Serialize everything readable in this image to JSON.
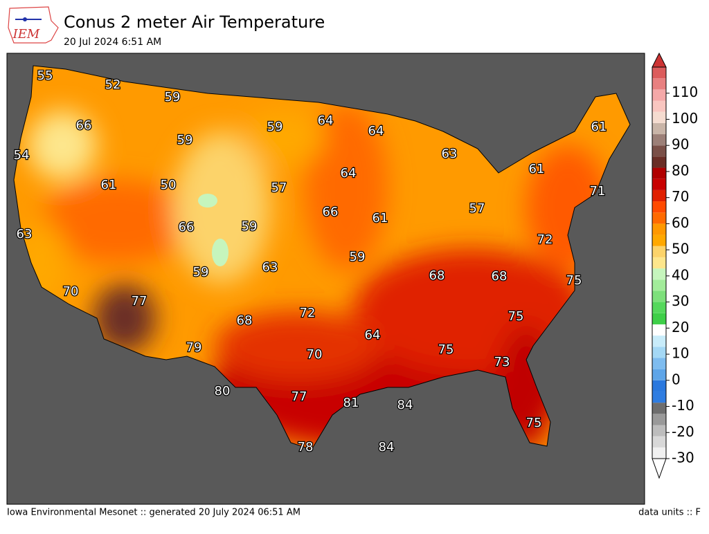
{
  "header": {
    "logo": "IEM",
    "title": "Conus 2 meter Air Temperature",
    "subtitle": "20 Jul 2024 6:51 AM"
  },
  "map": {
    "labels": [
      55,
      52,
      59,
      66,
      59,
      64,
      64,
      61,
      54,
      59,
      63,
      61,
      64,
      50,
      61,
      57,
      71,
      66,
      57,
      61,
      63,
      66,
      59,
      72,
      59,
      63,
      59,
      68,
      68,
      75,
      70,
      77,
      72,
      75,
      68,
      64,
      79,
      75,
      70,
      73,
      80,
      77,
      81,
      84,
      75,
      78,
      84
    ]
  },
  "colorbar": {
    "ticks": [
      -30,
      -20,
      -10,
      0,
      10,
      20,
      30,
      40,
      50,
      60,
      70,
      80,
      90,
      100,
      110
    ],
    "colors": [
      "#f0f0f0",
      "#d8d8d8",
      "#bdbdbd",
      "#9a9a9a",
      "#6e6e6e",
      "#2f7de1",
      "#2a78de",
      "#5ea5e8",
      "#7ebcef",
      "#a4d8f5",
      "#c8ecfa",
      "#ffffff",
      "#3ecf48",
      "#55d85c",
      "#7de07b",
      "#a2ec9a",
      "#c6f5bd",
      "#fde68c",
      "#fcd36a",
      "#ffa800",
      "#ff9800",
      "#ff6a00",
      "#ff4a00",
      "#e02000",
      "#c80000",
      "#b00000",
      "#6a2e26",
      "#7a5048",
      "#9c8078",
      "#c9b5a8",
      "#f5dcd0",
      "#f9c6c0",
      "#f4a8a8",
      "#e88080",
      "#dc5c5c"
    ],
    "min": -30,
    "max": 120,
    "under": "#ffffff",
    "over": "#cc3333"
  },
  "footer": {
    "left": "Iowa Environmental Mesonet :: generated 20 July 2024 06:51 AM",
    "right": "data units :: F"
  }
}
